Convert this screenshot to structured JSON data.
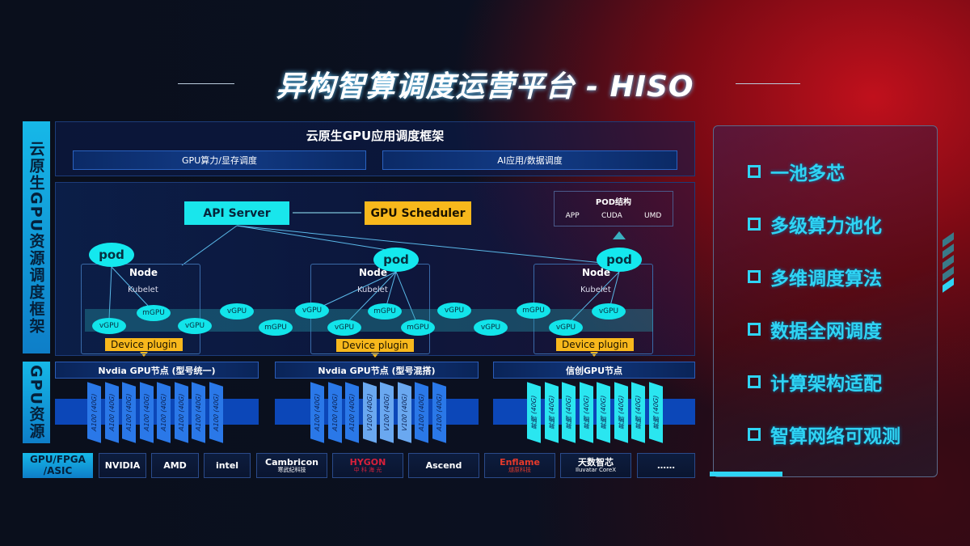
{
  "title": "异构智算调度运营平台 - HISO",
  "left_labels": {
    "framework": "云原生GPU资源调度框架",
    "resources": "GPU资源",
    "hardware": "GPU/FPGA /ASIC"
  },
  "app_framework": {
    "title": "云原生GPU应用调度框架",
    "boxes": [
      "GPU算力/显存调度",
      "AI应用/数据调度"
    ]
  },
  "api_server": "API Server",
  "gpu_scheduler": "GPU Scheduler",
  "pod_structure": {
    "title": "POD结构",
    "items": [
      "APP",
      "CUDA",
      "UMD"
    ]
  },
  "nodes": [
    {
      "title": "Node",
      "kubelet": "Kubelet",
      "pod": "pod",
      "plugin": "Device plugin"
    },
    {
      "title": "Node",
      "kubelet": "Kubelet",
      "pod": "pod",
      "plugin": "Device plugin"
    },
    {
      "title": "Node",
      "kubelet": "Kubelet",
      "pod": "pod",
      "plugin": "Device plugin"
    }
  ],
  "virtual_gpus": [
    "vGPU",
    "mGPU",
    "vGPU",
    "vGPU",
    "mGPU",
    "vGPU",
    "vGPU",
    "mGPU",
    "mGPU",
    "vGPU",
    "vGPU",
    "mGPU",
    "vGPU",
    "vGPU"
  ],
  "gpu_nodes": [
    {
      "title": "Nvdia GPU节点 (型号统一)",
      "cards": [
        "A100 (40G)",
        "A100 (40G)",
        "A100 (40G)",
        "A100 (40G)",
        "A100 (40G)",
        "A100 (40G)",
        "A100 (40G)",
        "A100 (40G)"
      ]
    },
    {
      "title": "Nvdia GPU节点 (型号混搭)",
      "cards": [
        "A100 (40G)",
        "A100 (40G)",
        "A100 (40G)",
        "V100 (40G)",
        "V100 (40G)",
        "V100 (40G)",
        "A100 (40G)",
        "A100 (40G)"
      ]
    },
    {
      "title": "信创GPU节点",
      "cards": [
        "昇腾 (40G)",
        "昇腾 (40G)",
        "昇腾 (40G)",
        "昇腾 (40G)",
        "昇腾 (40G)",
        "昇腾 (40G)",
        "昇腾 (40G)",
        "昇腾 (40G)"
      ]
    }
  ],
  "vendors": [
    {
      "name": "NVIDIA",
      "sub": ""
    },
    {
      "name": "AMD",
      "sub": ""
    },
    {
      "name": "intel",
      "sub": ""
    },
    {
      "name": "Cambricon",
      "sub": "寒武纪科技"
    },
    {
      "name": "HYGON",
      "sub": "中 科 海 光"
    },
    {
      "name": "Ascend",
      "sub": ""
    },
    {
      "name": "Enflame",
      "sub": "燧原科技"
    },
    {
      "name": "天数智芯",
      "sub": "Iluvatar CoreX"
    },
    {
      "name": "……",
      "sub": ""
    }
  ],
  "features": [
    "一池多芯",
    "多级算力池化",
    "多维调度算法",
    "数据全网调度",
    "计算架构适配",
    "智算网络可观测"
  ],
  "colors": {
    "cyan": "#19e6ec",
    "orange": "#f8b81c",
    "blue": "#0c47b8",
    "feature": "#2fd4f4"
  }
}
